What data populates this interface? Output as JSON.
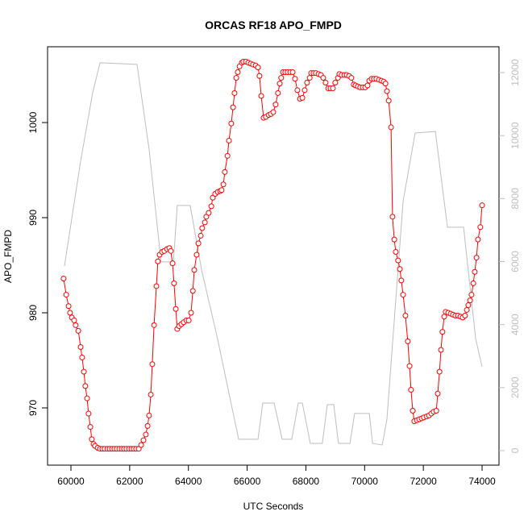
{
  "chart_data": {
    "type": "line",
    "title": "ORCAS RF18 APO_FMPD",
    "x_label": "UTC Seconds",
    "y_label": "APO_FMPD",
    "xlim": [
      59204,
      74576
    ],
    "xticks": [
      60000,
      62000,
      64000,
      66000,
      68000,
      70000,
      72000,
      74000
    ],
    "ylim": [
      963.98,
      1007.97
    ],
    "yticks": [
      970,
      980,
      990,
      1000
    ],
    "y2lim": [
      -461,
      12819
    ],
    "y2ticks": [
      0,
      2000,
      4000,
      6000,
      8000,
      10000,
      12000
    ],
    "series": [
      {
        "color": "#ff0000",
        "markers": true,
        "x": [
          59750,
          59840,
          59920,
          59970,
          60030,
          60110,
          60160,
          60250,
          60330,
          60380,
          60440,
          60490,
          60550,
          60600,
          60660,
          60710,
          60770,
          60820,
          60910,
          60990,
          61070,
          61150,
          61240,
          61320,
          61400,
          61480,
          61560,
          61650,
          61730,
          61810,
          61890,
          61980,
          62060,
          62140,
          62220,
          62310,
          62390,
          62470,
          62550,
          62610,
          62660,
          62720,
          62770,
          62830,
          62910,
          62960,
          63020,
          63100,
          63180,
          63270,
          63350,
          63400,
          63460,
          63510,
          63570,
          63620,
          63680,
          63760,
          63840,
          63930,
          64010,
          64090,
          64150,
          64200,
          64280,
          64340,
          64420,
          64470,
          64560,
          64610,
          64690,
          64780,
          64830,
          64910,
          65000,
          65080,
          65130,
          65190,
          65240,
          65330,
          65380,
          65460,
          65520,
          65570,
          65630,
          65680,
          65740,
          65820,
          65870,
          65960,
          66040,
          66120,
          66200,
          66290,
          66370,
          66420,
          66480,
          66560,
          66640,
          66730,
          66810,
          66890,
          66970,
          67050,
          67110,
          67160,
          67220,
          67300,
          67380,
          67470,
          67550,
          67630,
          67710,
          67800,
          67880,
          67960,
          68040,
          68130,
          68180,
          68260,
          68340,
          68430,
          68510,
          68590,
          68670,
          68760,
          68840,
          68920,
          69000,
          69090,
          69140,
          69220,
          69310,
          69390,
          69470,
          69550,
          69630,
          69690,
          69770,
          69850,
          69940,
          70020,
          70100,
          70160,
          70240,
          70320,
          70400,
          70490,
          70570,
          70650,
          70710,
          70760,
          70820,
          70900,
          70950,
          71010,
          71060,
          71140,
          71200,
          71250,
          71310,
          71390,
          71470,
          71530,
          71580,
          71640,
          71690,
          71780,
          71860,
          71940,
          72020,
          72110,
          72190,
          72270,
          72350,
          72440,
          72490,
          72550,
          72600,
          72650,
          72710,
          72760,
          72850,
          72930,
          73010,
          73090,
          73180,
          73260,
          73340,
          73420,
          73480,
          73530,
          73590,
          73640,
          73700,
          73750,
          73810,
          73860,
          73940,
          74000
        ],
        "values": [
          983.6,
          981.9,
          980.7,
          980.0,
          979.5,
          979.2,
          978.7,
          978.1,
          976.4,
          975.3,
          973.8,
          972.3,
          971.0,
          969.4,
          968.0,
          966.7,
          966.2,
          966.0,
          965.8,
          965.7,
          965.7,
          965.7,
          965.7,
          965.7,
          965.7,
          965.7,
          965.7,
          965.7,
          965.7,
          965.7,
          965.7,
          965.7,
          965.7,
          965.7,
          965.7,
          965.7,
          966.1,
          966.6,
          967.2,
          968.1,
          969.2,
          971.4,
          974.6,
          978.7,
          982.8,
          985.4,
          986.1,
          986.4,
          986.5,
          986.7,
          986.8,
          986.5,
          985.2,
          983.1,
          980.4,
          978.3,
          978.6,
          978.8,
          979.0,
          979.2,
          979.2,
          980.0,
          982.3,
          984.5,
          986.1,
          987.3,
          988.1,
          988.9,
          989.5,
          990.1,
          990.5,
          991.2,
          992.1,
          992.5,
          992.7,
          992.8,
          992.9,
          993.5,
          994.8,
          996.5,
          998.1,
          999.9,
          1001.6,
          1003.1,
          1004.7,
          1005.3,
          1005.9,
          1006.3,
          1006.4,
          1006.4,
          1006.3,
          1006.2,
          1006.1,
          1006.0,
          1005.8,
          1004.9,
          1002.8,
          1000.5,
          1000.6,
          1000.8,
          1000.9,
          1001.1,
          1001.9,
          1003.1,
          1004.1,
          1004.7,
          1005.3,
          1005.3,
          1005.3,
          1005.3,
          1005.3,
          1004.6,
          1003.4,
          1002.5,
          1002.6,
          1003.4,
          1004.2,
          1004.7,
          1005.2,
          1005.2,
          1005.2,
          1005.1,
          1005.0,
          1004.7,
          1004.2,
          1003.6,
          1003.6,
          1003.6,
          1004.2,
          1004.7,
          1005.1,
          1005.0,
          1005.0,
          1005.0,
          1004.9,
          1004.7,
          1004.0,
          1003.9,
          1003.8,
          1003.7,
          1003.7,
          1003.7,
          1003.9,
          1004.4,
          1004.6,
          1004.6,
          1004.6,
          1004.5,
          1004.4,
          1004.3,
          1004.1,
          1003.3,
          1002.3,
          999.5,
          990.1,
          987.7,
          986.4,
          985.5,
          984.6,
          983.4,
          981.9,
          979.7,
          977.0,
          974.4,
          971.9,
          969.7,
          968.6,
          968.7,
          968.8,
          968.9,
          969.0,
          969.1,
          969.2,
          969.4,
          969.6,
          969.7,
          971.5,
          973.8,
          976.1,
          978.0,
          979.6,
          980.1,
          980.0,
          979.9,
          979.8,
          979.7,
          979.7,
          979.6,
          979.5,
          979.7,
          980.3,
          980.8,
          981.3,
          981.9,
          983.1,
          984.3,
          985.8,
          987.7,
          989.0,
          991.3
        ]
      },
      {
        "color": "#bebebe",
        "axis": "y2",
        "markers": false,
        "x": [
          59780,
          60330,
          60740,
          60990,
          62250,
          62660,
          63070,
          63490,
          63620,
          64060,
          64450,
          64990,
          65710,
          66370,
          66530,
          66920,
          67190,
          67520,
          67740,
          67880,
          68150,
          68560,
          68730,
          68950,
          69110,
          69500,
          69660,
          70160,
          70270,
          70600,
          70760,
          71310,
          71720,
          72410,
          72820,
          73370,
          73780,
          74000
        ],
        "values": [
          5860,
          9190,
          11360,
          12310,
          12260,
          9570,
          5990,
          5990,
          7780,
          7780,
          5730,
          3560,
          360,
          360,
          1510,
          1510,
          360,
          360,
          1510,
          1510,
          230,
          230,
          1460,
          1460,
          230,
          230,
          1180,
          1180,
          230,
          180,
          1000,
          7910,
          10080,
          10130,
          7090,
          7090,
          3560,
          2660
        ]
      }
    ]
  }
}
